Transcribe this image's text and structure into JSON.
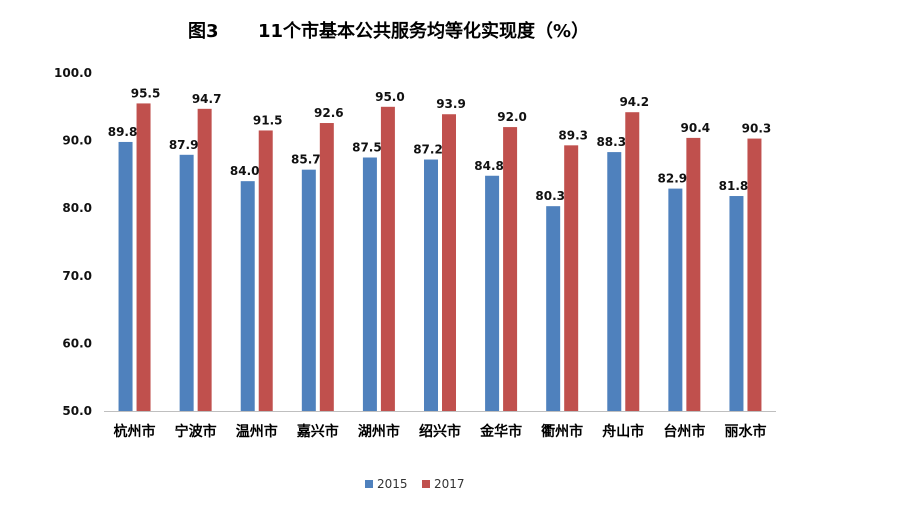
{
  "colors": {
    "series_2015": "#4F81BD",
    "series_2017": "#C0504D",
    "axis": "#bfbfbf"
  },
  "chart_data": {
    "type": "bar",
    "title_prefix": "图3",
    "title": "11个市基本公共服务均等化实现度（%）",
    "xlabel": "",
    "ylabel": "",
    "ylim": [
      50,
      100
    ],
    "yticks": [
      "50.0",
      "60.0",
      "70.0",
      "80.0",
      "90.0",
      "100.0"
    ],
    "grid": false,
    "legend_position": "bottom",
    "categories": [
      "杭州市",
      "宁波市",
      "温州市",
      "嘉兴市",
      "湖州市",
      "绍兴市",
      "金华市",
      "衢州市",
      "舟山市",
      "台州市",
      "丽水市"
    ],
    "series": [
      {
        "name": "2015",
        "values": [
          89.8,
          87.9,
          84.0,
          85.7,
          87.5,
          87.2,
          84.8,
          80.3,
          88.3,
          82.9,
          81.8
        ],
        "labels": [
          "89.8",
          "87.9",
          "84.0",
          "85.7",
          "87.5",
          "87.2",
          "84.8",
          "80.3",
          "88.3",
          "82.9",
          "81.8"
        ]
      },
      {
        "name": "2017",
        "values": [
          95.5,
          94.7,
          91.5,
          92.6,
          95.0,
          93.9,
          92.0,
          89.3,
          94.2,
          90.4,
          90.3
        ],
        "labels": [
          "95.5",
          "94.7",
          "91.5",
          "92.6",
          "95.0",
          "93.9",
          "92.0",
          "89.3",
          "94.2",
          "90.4",
          "90.3"
        ]
      }
    ]
  }
}
